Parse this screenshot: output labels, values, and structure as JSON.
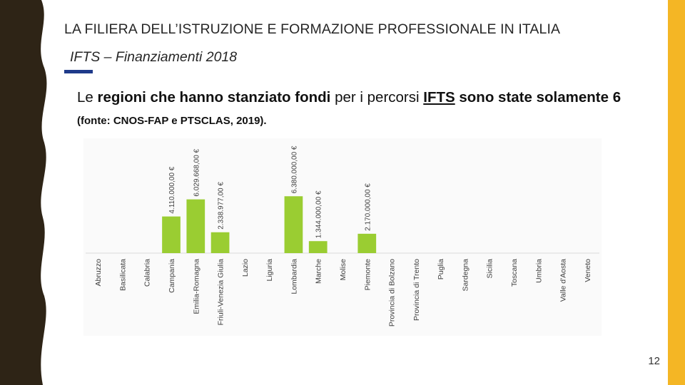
{
  "slide": {
    "title": "LA FILIERA DELL’ISTRUZIONE E FORMAZIONE PROFESSIONALE IN ITALIA",
    "subtitle": "IFTS – Finanziamenti 2018",
    "desc_1": "Le ",
    "desc_2": "regioni che hanno stanziato fondi",
    "desc_3": " per i percorsi ",
    "desc_4": "IFTS",
    "desc_5": " sono state solamente 6 ",
    "desc_6": "(fonte: CNOS-FAP e PTSCLAS, 2019).",
    "page_number": "12"
  },
  "colors": {
    "bar": "#9acd32",
    "accent": "#f4b625",
    "dark_band": "#2e2416",
    "title_underline": "#1f3a8a"
  },
  "chart_data": {
    "type": "bar",
    "title": "",
    "xlabel": "",
    "ylabel": "",
    "categories": [
      "Abruzzo",
      "Basilicata",
      "Calabria",
      "Campania",
      "Emilia-Romagna",
      "Friuli-Venezia Giulia",
      "Lazio",
      "Liguria",
      "Lombardia",
      "Marche",
      "Molise",
      "Piemonte",
      "Provincia di Bolzano",
      "Provincia di Trento",
      "Puglia",
      "Sardegna",
      "Sicilia",
      "Toscana",
      "Umbria",
      "Valle d'Aosta",
      "Veneto"
    ],
    "values": [
      0,
      0,
      0,
      4110000,
      6029668,
      2338977,
      0,
      0,
      6380000,
      1344000,
      0,
      2170000,
      0,
      0,
      0,
      0,
      0,
      0,
      0,
      0,
      0
    ],
    "labels": [
      "",
      "",
      "",
      "4.110.000,00 €",
      "6.029.668,00 €",
      "2.338.977,00 €",
      "",
      "",
      "6.380.000,00 €",
      "1.344.000,00 €",
      "",
      "2.170.000,00 €",
      "",
      "",
      "",
      "",
      "",
      "",
      "",
      "",
      ""
    ],
    "ylim": [
      0,
      6400000
    ],
    "grid": false,
    "legend": "none"
  }
}
